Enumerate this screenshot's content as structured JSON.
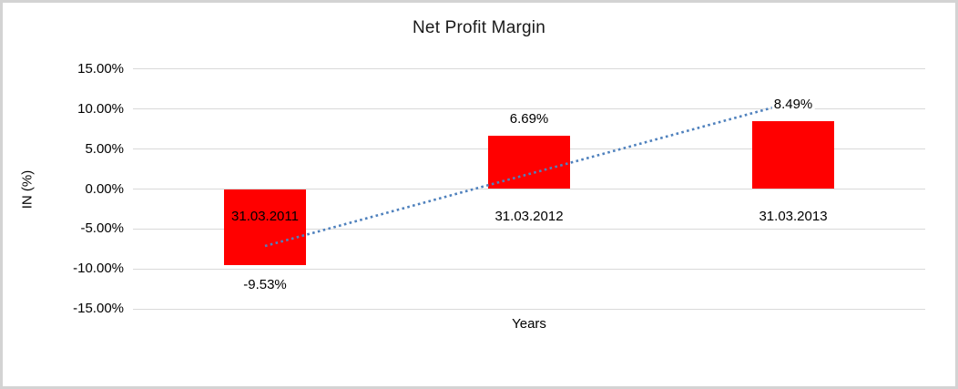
{
  "chart_data": {
    "type": "bar",
    "title": "Net Profit Margin",
    "xlabel": "Years",
    "ylabel": "IN (%)",
    "categories": [
      "31.03.2011",
      "31.03.2012",
      "31.03.2013"
    ],
    "values": [
      -9.53,
      6.69,
      8.49
    ],
    "data_labels": [
      "-9.53%",
      "6.69%",
      "8.49%"
    ],
    "ylim": [
      -15,
      15
    ],
    "ytick_step": 5,
    "ytick_labels": [
      "15.00%",
      "10.00%",
      "5.00%",
      "0.00%",
      "-5.00%",
      "-10.00%",
      "-15.00%"
    ],
    "ytick_values": [
      15,
      10,
      5,
      0,
      -5,
      -10,
      -15
    ],
    "grid": true,
    "legend": "none",
    "bar_color": "#ff0000",
    "gridline_color": "#d9d9d9",
    "frame_color": "#d3d3d3",
    "text_color": "#000000",
    "trendline": {
      "type": "linear",
      "style": "dotted",
      "color": "#4f81bd",
      "start_value": -7.13,
      "end_value": 10.89
    }
  }
}
